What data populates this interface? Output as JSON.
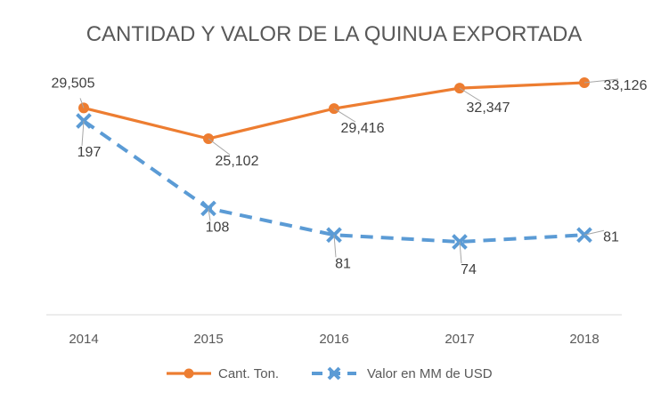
{
  "chart_data": {
    "type": "line",
    "title": "CANTIDAD Y VALOR DE LA QUINUA EXPORTADA",
    "categories": [
      "2014",
      "2015",
      "2016",
      "2017",
      "2018"
    ],
    "legend_position": "bottom",
    "grid": false,
    "series": [
      {
        "name": "Cant. Ton.",
        "values": [
          29505,
          25102,
          29416,
          32347,
          33126
        ],
        "labels": [
          "29,505",
          "25,102",
          "29,416",
          "32,347",
          "33,126"
        ],
        "color": "#ED7D31",
        "marker": "circle",
        "line_style": "solid"
      },
      {
        "name": "Valor en MM de USD",
        "values": [
          197,
          108,
          81,
          74,
          81
        ],
        "labels": [
          "197",
          "108",
          "81",
          "74",
          "81"
        ],
        "color": "#5B9BD5",
        "marker": "x",
        "line_style": "dashed"
      }
    ]
  }
}
